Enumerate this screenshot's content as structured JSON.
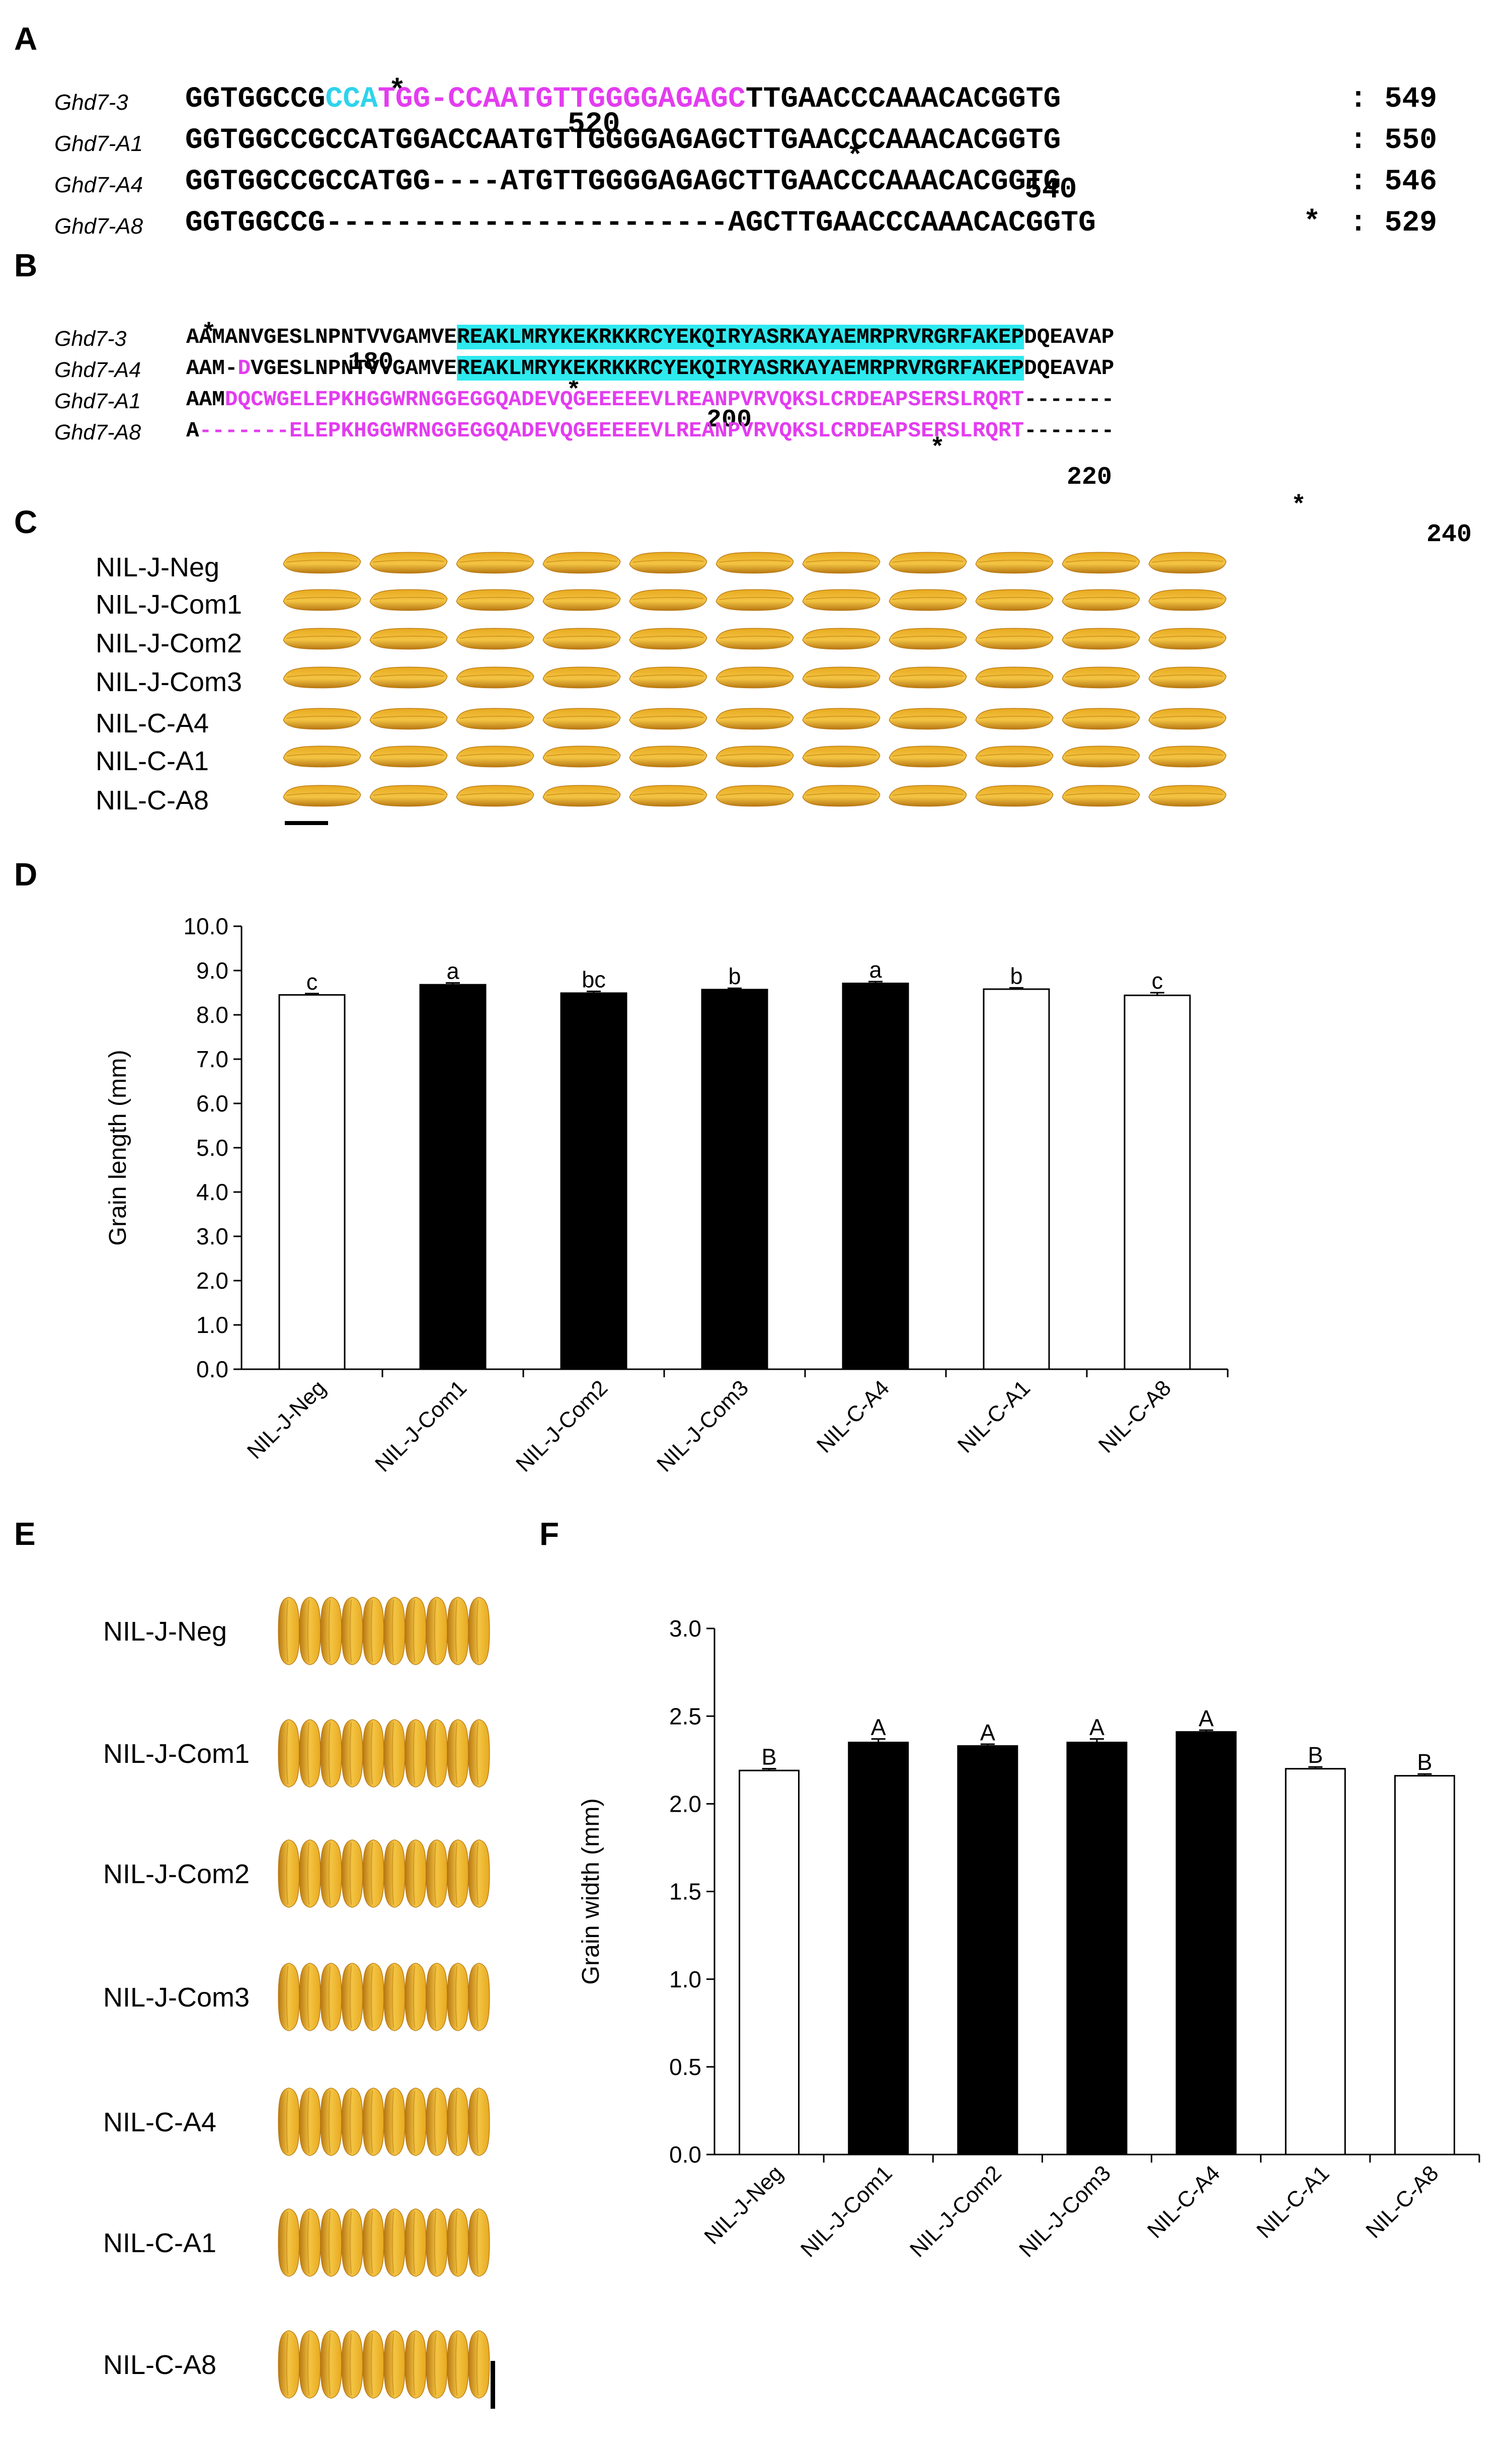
{
  "panels": {
    "A": "A",
    "B": "B",
    "C": "C",
    "D": "D",
    "E": "E",
    "F": "F"
  },
  "panelA": {
    "ruler": {
      "star": "*",
      "n520": "520",
      "n540": "540"
    },
    "rows": [
      {
        "name": "Ghd7-3",
        "segments": [
          {
            "text": "GGTGGCCG",
            "color": "black"
          },
          {
            "text": "CCA",
            "color": "cyan"
          },
          {
            "text": "TGG-CCAATGTTGGGGAGAGC",
            "color": "magenta"
          },
          {
            "text": "TTGAACCCAAACACGGTG",
            "color": "black"
          }
        ],
        "end": ": 549"
      },
      {
        "name": "Ghd7-A1",
        "segments": [
          {
            "text": "GGTGGCCGCCATGGACCAATGTTGGGGAGAGCTTGAACCCAAACACGGTG",
            "color": "black"
          }
        ],
        "end": ": 550"
      },
      {
        "name": "Ghd7-A4",
        "segments": [
          {
            "text": "GGTGGCCGCCATGG----ATGTTGGGGAGAGCTTGAACCCAAACACGGTG",
            "color": "black"
          }
        ],
        "end": ": 546"
      },
      {
        "name": "Ghd7-A8",
        "segments": [
          {
            "text": "GGTGGCCG-----------------------AGCTTGAACCCAAACACGGTG",
            "color": "black"
          }
        ],
        "end": ": 529"
      }
    ]
  },
  "panelB": {
    "ruler": {
      "star": "*",
      "n180": "180",
      "n200": "200",
      "n220": "220",
      "n240": "240"
    },
    "rows": [
      {
        "name": "Ghd7-3",
        "segments": [
          {
            "text": "AAMANVGESLNPNTVVGAMVE",
            "color": "black"
          },
          {
            "text": "REAKLMRYKEKRKKRCYEKQIRYASRKAYAEMRPRVRGRFAKEP",
            "color": "black",
            "highlight": true
          },
          {
            "text": "DQEAVAP",
            "color": "black"
          }
        ]
      },
      {
        "name": "Ghd7-A4",
        "segments": [
          {
            "text": "AAM-",
            "color": "black"
          },
          {
            "text": "D",
            "color": "magenta"
          },
          {
            "text": "VGESLNPNTVVGAMVE",
            "color": "black"
          },
          {
            "text": "REAKLMRYKEKRKKRCYEKQIRYASRKAYAEMRPRVRGRFAKEP",
            "color": "black",
            "highlight": true
          },
          {
            "text": "DQEAVAP",
            "color": "black"
          }
        ]
      },
      {
        "name": "Ghd7-A1",
        "segments": [
          {
            "text": "AAM",
            "color": "black"
          },
          {
            "text": "DQCWGELEPKHGGWRNGGEGGQADEVQGEEEEEVLREANPVRVQKSLCRDEAPSERSLRQRT",
            "color": "magenta"
          },
          {
            "text": "-------",
            "color": "black"
          }
        ]
      },
      {
        "name": "Ghd7-A8",
        "segments": [
          {
            "text": "A",
            "color": "black"
          },
          {
            "text": "-------ELEPKHGGWRNGGEGGQADEVQGEEEEEVLREANPVRVQKSLCRDEAPSERSLRQRT",
            "color": "magenta"
          },
          {
            "text": "-------",
            "color": "black"
          }
        ]
      }
    ]
  },
  "genotypes": [
    "NIL-J-Neg",
    "NIL-J-Com1",
    "NIL-J-Com2",
    "NIL-J-Com3",
    "NIL-C-A4",
    "NIL-C-A1",
    "NIL-C-A8"
  ],
  "panelC": {
    "labels": [
      "NIL-J-Neg",
      "NIL-J-Com1",
      "NIL-J-Com2",
      "NIL-J-Com3",
      "NIL-C-A4",
      "NIL-C-A1",
      "NIL-C-A8"
    ]
  },
  "panelE": {
    "labels": [
      "NIL-J-Neg",
      "NIL-J-Com1",
      "NIL-J-Com2",
      "NIL-J-Com3",
      "NIL-C-A4",
      "NIL-C-A1",
      "NIL-C-A8"
    ]
  },
  "colors": {
    "grain": "#e8a91f",
    "grain_dark": "#b87812",
    "magenta": "#e33cf0",
    "cyan": "#2fd3ec",
    "highlight": "#2ee9ee",
    "bar_open": "#ffffff",
    "bar_filled": "#000000"
  },
  "chart_data": [
    {
      "type": "bar",
      "panel": "D",
      "title": "",
      "xlabel": "",
      "ylabel": "Grain length (mm)",
      "ylim": [
        0,
        10
      ],
      "yticks": [
        "0.0",
        "1.0",
        "2.0",
        "3.0",
        "4.0",
        "5.0",
        "6.0",
        "7.0",
        "8.0",
        "9.0",
        "10.0"
      ],
      "categories": [
        "NIL-J-Neg",
        "NIL-J-Com1",
        "NIL-J-Com2",
        "NIL-J-Com3",
        "NIL-C-A4",
        "NIL-C-A1",
        "NIL-C-A8"
      ],
      "values": [
        8.45,
        8.68,
        8.49,
        8.57,
        8.71,
        8.58,
        8.44
      ],
      "errors": [
        0.03,
        0.04,
        0.04,
        0.03,
        0.04,
        0.03,
        0.06
      ],
      "fill": [
        "open",
        "filled",
        "filled",
        "filled",
        "filled",
        "open",
        "open"
      ],
      "letters": [
        "c",
        "a",
        "bc",
        "b",
        "a",
        "b",
        "c"
      ]
    },
    {
      "type": "bar",
      "panel": "F",
      "title": "",
      "xlabel": "",
      "ylabel": "Grain width (mm)",
      "ylim": [
        0,
        3
      ],
      "yticks": [
        "0.0",
        "0.5",
        "1.0",
        "1.5",
        "2.0",
        "2.5",
        "3.0"
      ],
      "categories": [
        "NIL-J-Neg",
        "NIL-J-Com1",
        "NIL-J-Com2",
        "NIL-J-Com3",
        "NIL-C-A4",
        "NIL-C-A1",
        "NIL-C-A8"
      ],
      "values": [
        2.19,
        2.35,
        2.33,
        2.35,
        2.41,
        2.2,
        2.16
      ],
      "errors": [
        0.01,
        0.02,
        0.01,
        0.02,
        0.01,
        0.01,
        0.01
      ],
      "fill": [
        "open",
        "filled",
        "filled",
        "filled",
        "filled",
        "open",
        "open"
      ],
      "letters": [
        "B",
        "A",
        "A",
        "A",
        "A",
        "B",
        "B"
      ]
    }
  ]
}
